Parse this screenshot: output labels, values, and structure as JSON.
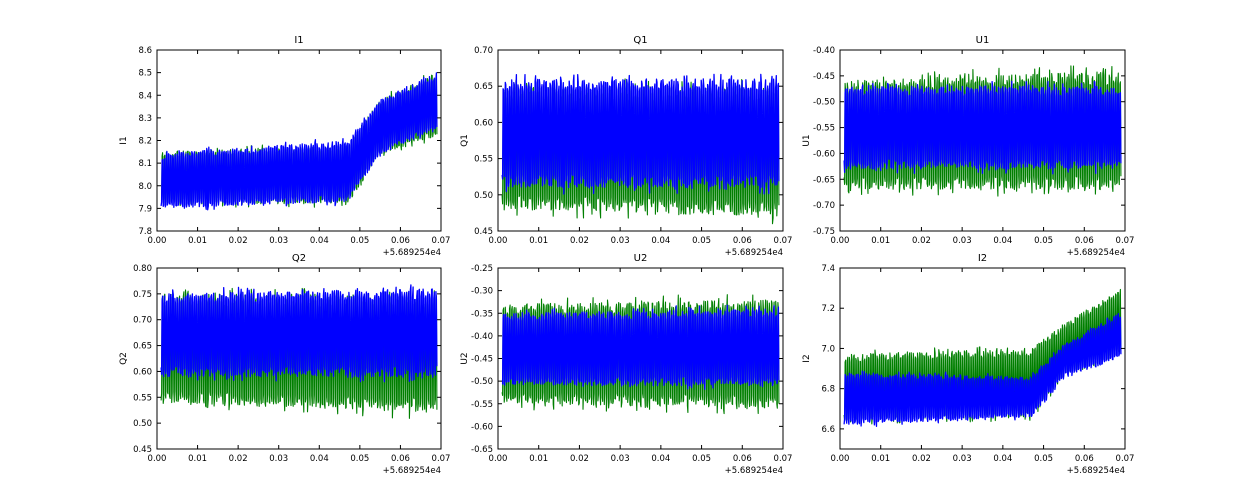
{
  "colors": {
    "blue": "#0000ff",
    "green": "#007f00"
  },
  "chart_data": [
    {
      "type": "line",
      "title": "I1",
      "ylabel": "I1",
      "xlabel": "",
      "x_offset_label": "+5.689254e4",
      "xlim": [
        0.0,
        0.07
      ],
      "ylim": [
        7.8,
        8.6
      ],
      "xticks": [
        "0.00",
        "0.01",
        "0.02",
        "0.03",
        "0.04",
        "0.05",
        "0.06",
        "0.07"
      ],
      "yticks": [
        "7.8",
        "7.9",
        "8.0",
        "8.1",
        "8.2",
        "8.3",
        "8.4",
        "8.5",
        "8.6"
      ],
      "grid": false,
      "series": [
        {
          "color": "#007f00",
          "x_range": [
            0.001,
            0.069
          ],
          "low": [
            [
              0.0,
              7.92
            ],
            [
              0.047,
              7.92
            ],
            [
              0.055,
              8.14
            ],
            [
              0.069,
              8.22
            ]
          ],
          "high": [
            [
              0.0,
              8.15
            ],
            [
              0.047,
              8.18
            ],
            [
              0.055,
              8.38
            ],
            [
              0.069,
              8.5
            ]
          ]
        },
        {
          "color": "#0000ff",
          "x_range": [
            0.001,
            0.069
          ],
          "low": [
            [
              0.0,
              7.9
            ],
            [
              0.047,
              7.93
            ],
            [
              0.055,
              8.14
            ],
            [
              0.069,
              8.25
            ]
          ],
          "high": [
            [
              0.0,
              8.14
            ],
            [
              0.047,
              8.2
            ],
            [
              0.055,
              8.38
            ],
            [
              0.069,
              8.5
            ]
          ]
        }
      ]
    },
    {
      "type": "line",
      "title": "Q1",
      "ylabel": "Q1",
      "xlabel": "",
      "x_offset_label": "+5.689254e4",
      "xlim": [
        0.0,
        0.07
      ],
      "ylim": [
        0.45,
        0.7
      ],
      "xticks": [
        "0.00",
        "0.01",
        "0.02",
        "0.03",
        "0.04",
        "0.05",
        "0.06",
        "0.07"
      ],
      "yticks": [
        "0.45",
        "0.50",
        "0.55",
        "0.60",
        "0.65",
        "0.70"
      ],
      "grid": false,
      "series": [
        {
          "color": "#007f00",
          "x_range": [
            0.001,
            0.069
          ],
          "low": [
            [
              0.0,
              0.48
            ],
            [
              0.069,
              0.47
            ]
          ],
          "high": [
            [
              0.0,
              0.65
            ],
            [
              0.069,
              0.65
            ]
          ]
        },
        {
          "color": "#0000ff",
          "x_range": [
            0.001,
            0.069
          ],
          "low": [
            [
              0.0,
              0.51
            ],
            [
              0.069,
              0.51
            ]
          ],
          "high": [
            [
              0.0,
              0.66
            ],
            [
              0.069,
              0.66
            ]
          ]
        }
      ]
    },
    {
      "type": "line",
      "title": "U1",
      "ylabel": "U1",
      "xlabel": "",
      "x_offset_label": "+5.689254e4",
      "xlim": [
        0.0,
        0.07
      ],
      "ylim": [
        -0.75,
        -0.4
      ],
      "xticks": [
        "0.00",
        "0.01",
        "0.02",
        "0.03",
        "0.04",
        "0.05",
        "0.06",
        "0.07"
      ],
      "yticks": [
        "-0.75",
        "-0.70",
        "-0.65",
        "-0.60",
        "-0.55",
        "-0.50",
        "-0.45",
        "-0.40"
      ],
      "grid": false,
      "series": [
        {
          "color": "#007f00",
          "x_range": [
            0.001,
            0.069
          ],
          "low": [
            [
              0.0,
              -0.67
            ],
            [
              0.069,
              -0.67
            ]
          ],
          "high": [
            [
              0.0,
              -0.46
            ],
            [
              0.069,
              -0.44
            ]
          ]
        },
        {
          "color": "#0000ff",
          "x_range": [
            0.001,
            0.069
          ],
          "low": [
            [
              0.0,
              -0.63
            ],
            [
              0.069,
              -0.63
            ]
          ],
          "high": [
            [
              0.0,
              -0.47
            ],
            [
              0.069,
              -0.47
            ]
          ]
        }
      ]
    },
    {
      "type": "line",
      "title": "Q2",
      "ylabel": "Q2",
      "xlabel": "",
      "x_offset_label": "+5.689254e4",
      "xlim": [
        0.0,
        0.07
      ],
      "ylim": [
        0.45,
        0.8
      ],
      "xticks": [
        "0.00",
        "0.01",
        "0.02",
        "0.03",
        "0.04",
        "0.05",
        "0.06",
        "0.07"
      ],
      "yticks": [
        "0.45",
        "0.50",
        "0.55",
        "0.60",
        "0.65",
        "0.70",
        "0.75",
        "0.80"
      ],
      "grid": false,
      "series": [
        {
          "color": "#007f00",
          "x_range": [
            0.001,
            0.069
          ],
          "low": [
            [
              0.0,
              0.54
            ],
            [
              0.069,
              0.52
            ]
          ],
          "high": [
            [
              0.0,
              0.75
            ],
            [
              0.069,
              0.75
            ]
          ]
        },
        {
          "color": "#0000ff",
          "x_range": [
            0.001,
            0.069
          ],
          "low": [
            [
              0.0,
              0.59
            ],
            [
              0.069,
              0.59
            ]
          ],
          "high": [
            [
              0.0,
              0.75
            ],
            [
              0.069,
              0.76
            ]
          ]
        }
      ]
    },
    {
      "type": "line",
      "title": "U2",
      "ylabel": "U2",
      "xlabel": "",
      "x_offset_label": "+5.689254e4",
      "xlim": [
        0.0,
        0.07
      ],
      "ylim": [
        -0.65,
        -0.25
      ],
      "xticks": [
        "0.00",
        "0.01",
        "0.02",
        "0.03",
        "0.04",
        "0.05",
        "0.06",
        "0.07"
      ],
      "yticks": [
        "-0.65",
        "-0.60",
        "-0.55",
        "-0.50",
        "-0.45",
        "-0.40",
        "-0.35",
        "-0.30",
        "-0.25"
      ],
      "grid": false,
      "series": [
        {
          "color": "#007f00",
          "x_range": [
            0.001,
            0.069
          ],
          "low": [
            [
              0.0,
              -0.55
            ],
            [
              0.069,
              -0.56
            ]
          ],
          "high": [
            [
              0.0,
              -0.33
            ],
            [
              0.069,
              -0.32
            ]
          ]
        },
        {
          "color": "#0000ff",
          "x_range": [
            0.001,
            0.069
          ],
          "low": [
            [
              0.0,
              -0.51
            ],
            [
              0.069,
              -0.51
            ]
          ],
          "high": [
            [
              0.0,
              -0.35
            ],
            [
              0.069,
              -0.34
            ]
          ]
        }
      ]
    },
    {
      "type": "line",
      "title": "I2",
      "ylabel": "I2",
      "xlabel": "",
      "x_offset_label": "+5.689254e4",
      "xlim": [
        0.0,
        0.07
      ],
      "ylim": [
        6.5,
        7.4
      ],
      "xticks": [
        "0.00",
        "0.01",
        "0.02",
        "0.03",
        "0.04",
        "0.05",
        "0.06",
        "0.07"
      ],
      "yticks": [
        "6.6",
        "6.8",
        "7.0",
        "7.2",
        "7.4"
      ],
      "grid": false,
      "series": [
        {
          "color": "#007f00",
          "x_range": [
            0.001,
            0.069
          ],
          "low": [
            [
              0.0,
              6.64
            ],
            [
              0.047,
              6.66
            ],
            [
              0.055,
              6.86
            ],
            [
              0.069,
              6.97
            ]
          ],
          "high": [
            [
              0.0,
              6.97
            ],
            [
              0.047,
              7.0
            ],
            [
              0.055,
              7.12
            ],
            [
              0.069,
              7.3
            ]
          ]
        },
        {
          "color": "#0000ff",
          "x_range": [
            0.001,
            0.069
          ],
          "low": [
            [
              0.0,
              6.62
            ],
            [
              0.047,
              6.66
            ],
            [
              0.055,
              6.86
            ],
            [
              0.069,
              6.95
            ]
          ],
          "high": [
            [
              0.0,
              6.88
            ],
            [
              0.047,
              6.86
            ],
            [
              0.055,
              7.02
            ],
            [
              0.069,
              7.18
            ]
          ]
        }
      ]
    }
  ]
}
